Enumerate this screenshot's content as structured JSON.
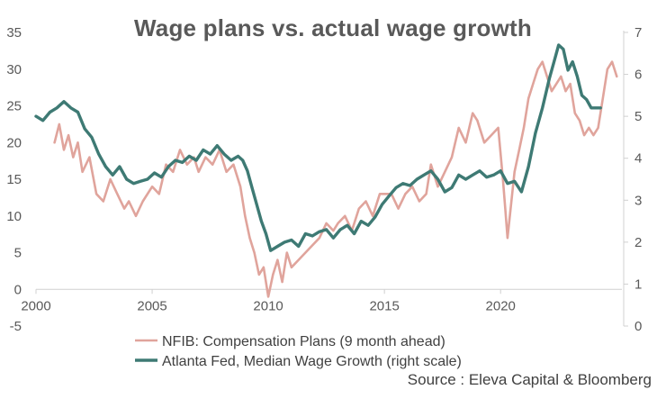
{
  "chart_data": {
    "type": "line",
    "title": "Wage plans vs. actual wage growth",
    "source": "Source : Eleva Capital & Bloomberg",
    "x_axis": {
      "ticks": [
        2000,
        2005,
        2010,
        2015,
        2020
      ],
      "labels": [
        "2000",
        "2005",
        "2010",
        "2015",
        "2020"
      ],
      "range": [
        2000,
        2025.3
      ]
    },
    "y_left": {
      "ticks": [
        -5,
        0,
        5,
        10,
        15,
        20,
        25,
        30,
        35
      ],
      "labels": [
        "-5",
        "0",
        "5",
        "10",
        "15",
        "20",
        "25",
        "30",
        "35"
      ],
      "range": [
        -5,
        35
      ]
    },
    "y_right": {
      "ticks": [
        0,
        1,
        2,
        3,
        4,
        5,
        6,
        7
      ],
      "labels": [
        "0",
        "1",
        "2",
        "3",
        "4",
        "5",
        "6",
        "7"
      ],
      "range": [
        0,
        7
      ]
    },
    "legend": [
      {
        "name": "NFIB: Compensation Plans (9 month ahead)",
        "color": "#e0a49c"
      },
      {
        "name": "Atlanta Fed, Median Wage Growth  (right scale)",
        "color": "#3e7a74"
      }
    ],
    "series": [
      {
        "name": "NFIB: Compensation Plans (9 month ahead)",
        "axis": "left",
        "color": "#e0a49c",
        "x": [
          2000.8,
          2001.0,
          2001.2,
          2001.4,
          2001.6,
          2001.8,
          2002.0,
          2002.3,
          2002.6,
          2002.9,
          2003.2,
          2003.5,
          2003.8,
          2004.0,
          2004.3,
          2004.6,
          2005.0,
          2005.3,
          2005.6,
          2005.9,
          2006.2,
          2006.5,
          2006.8,
          2007.0,
          2007.3,
          2007.6,
          2007.9,
          2008.2,
          2008.5,
          2008.8,
          2009.0,
          2009.2,
          2009.4,
          2009.6,
          2009.8,
          2010.0,
          2010.2,
          2010.4,
          2010.6,
          2010.8,
          2011.0,
          2011.3,
          2011.6,
          2011.9,
          2012.2,
          2012.5,
          2012.8,
          2013.0,
          2013.3,
          2013.6,
          2013.9,
          2014.2,
          2014.5,
          2014.8,
          2015.0,
          2015.3,
          2015.6,
          2015.9,
          2016.2,
          2016.5,
          2016.8,
          2017.0,
          2017.3,
          2017.6,
          2017.9,
          2018.2,
          2018.5,
          2018.8,
          2019.0,
          2019.3,
          2019.6,
          2019.9,
          2020.1,
          2020.2,
          2020.3,
          2020.4,
          2020.6,
          2020.8,
          2021.0,
          2021.2,
          2021.4,
          2021.6,
          2021.8,
          2022.0,
          2022.2,
          2022.4,
          2022.6,
          2022.8,
          2023.0,
          2023.2,
          2023.4,
          2023.6,
          2023.8,
          2024.0,
          2024.2,
          2024.4,
          2024.6,
          2024.8,
          2025.0
        ],
        "values": [
          20,
          22.5,
          19,
          21,
          18,
          20,
          16,
          18,
          13,
          12,
          15,
          13,
          11,
          12,
          10,
          12,
          14,
          13,
          17,
          16,
          19,
          17,
          18,
          16,
          18,
          17,
          19,
          16,
          17,
          14,
          10,
          7,
          5,
          2,
          3,
          -1,
          2,
          4,
          1,
          5,
          3,
          4,
          5,
          6,
          7,
          9,
          8,
          9,
          10,
          8,
          11,
          12,
          10,
          13,
          13,
          13,
          11,
          13,
          14,
          12,
          13,
          17,
          14,
          16,
          18,
          22,
          20,
          24,
          23,
          20,
          21,
          22,
          15,
          11,
          7,
          10,
          16,
          19,
          22,
          26,
          28,
          30,
          31,
          29,
          27,
          28,
          29,
          27,
          28,
          24,
          23,
          21,
          22,
          21,
          22,
          26,
          30,
          31,
          29
        ]
      },
      {
        "name": "Atlanta Fed, Median Wage Growth  (right scale)",
        "axis": "right",
        "color": "#3e7a74",
        "x": [
          2000.0,
          2000.3,
          2000.6,
          2000.9,
          2001.2,
          2001.5,
          2001.8,
          2002.1,
          2002.4,
          2002.7,
          2003.0,
          2003.3,
          2003.6,
          2003.9,
          2004.2,
          2004.5,
          2004.8,
          2005.1,
          2005.4,
          2005.7,
          2006.0,
          2006.3,
          2006.6,
          2006.9,
          2007.2,
          2007.5,
          2007.8,
          2008.1,
          2008.4,
          2008.7,
          2008.9,
          2009.1,
          2009.3,
          2009.5,
          2009.7,
          2009.9,
          2010.1,
          2010.4,
          2010.7,
          2011.0,
          2011.3,
          2011.6,
          2011.9,
          2012.2,
          2012.5,
          2012.8,
          2013.1,
          2013.4,
          2013.7,
          2014.0,
          2014.3,
          2014.6,
          2014.9,
          2015.2,
          2015.5,
          2015.8,
          2016.1,
          2016.4,
          2016.7,
          2017.0,
          2017.3,
          2017.6,
          2017.9,
          2018.2,
          2018.5,
          2018.8,
          2019.1,
          2019.4,
          2019.7,
          2020.0,
          2020.3,
          2020.6,
          2020.9,
          2021.2,
          2021.5,
          2021.8,
          2022.1,
          2022.3,
          2022.5,
          2022.7,
          2022.9,
          2023.1,
          2023.3,
          2023.5,
          2023.7,
          2023.9,
          2024.1,
          2024.3
        ],
        "values": [
          5.0,
          4.9,
          5.1,
          5.2,
          5.35,
          5.2,
          5.1,
          4.7,
          4.5,
          4.1,
          3.8,
          3.6,
          3.8,
          3.5,
          3.4,
          3.45,
          3.5,
          3.65,
          3.55,
          3.8,
          3.95,
          3.9,
          4.05,
          3.95,
          4.2,
          4.1,
          4.3,
          4.1,
          3.95,
          4.05,
          3.95,
          3.7,
          3.3,
          2.9,
          2.5,
          2.2,
          1.8,
          1.9,
          2.0,
          2.05,
          1.9,
          2.2,
          2.15,
          2.25,
          2.3,
          2.1,
          2.3,
          2.4,
          2.2,
          2.5,
          2.4,
          2.6,
          2.9,
          3.1,
          3.3,
          3.4,
          3.35,
          3.5,
          3.6,
          3.7,
          3.5,
          3.2,
          3.3,
          3.6,
          3.5,
          3.6,
          3.7,
          3.55,
          3.6,
          3.7,
          3.4,
          3.45,
          3.2,
          3.8,
          4.6,
          5.2,
          5.9,
          6.3,
          6.7,
          6.6,
          6.1,
          6.3,
          5.95,
          5.5,
          5.4,
          5.2,
          5.2,
          5.2
        ]
      }
    ]
  }
}
